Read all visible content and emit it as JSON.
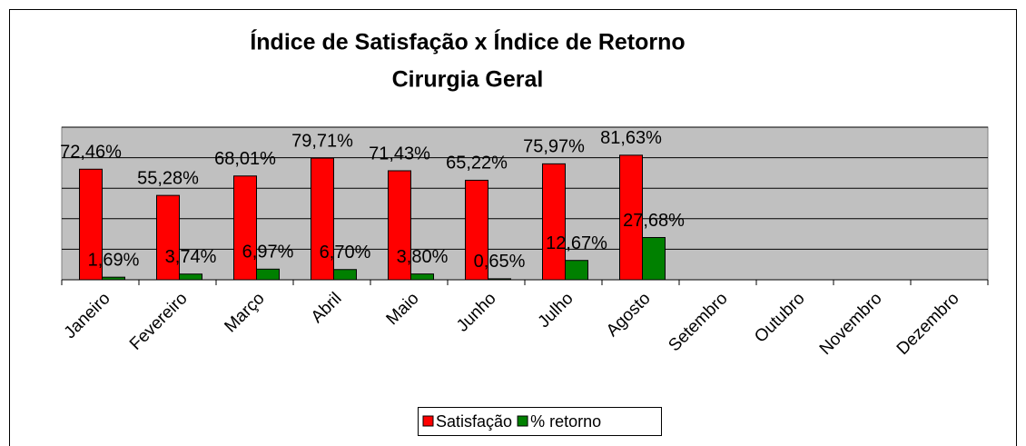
{
  "chart_data": {
    "type": "bar",
    "title": "Índice de Satisfação x Índice de Retorno",
    "subtitle": "Cirurgia Geral",
    "categories": [
      "Janeiro",
      "Fevereiro",
      "Março",
      "Abril",
      "Maio",
      "Junho",
      "Julho",
      "Agosto",
      "Setembro",
      "Outubro",
      "Novembro",
      "Dezembro"
    ],
    "series": [
      {
        "name": "Satisfação",
        "color": "#ff0000",
        "values": [
          72.46,
          55.28,
          68.01,
          79.71,
          71.43,
          65.22,
          75.97,
          81.63,
          null,
          null,
          null,
          null
        ],
        "value_labels": [
          "72,46%",
          "55,28%",
          "68,01%",
          "79,71%",
          "71,43%",
          "65,22%",
          "75,97%",
          "81,63%",
          null,
          null,
          null,
          null
        ]
      },
      {
        "name": "% retorno",
        "color": "#008000",
        "values": [
          1.69,
          3.74,
          6.97,
          6.7,
          3.8,
          0.65,
          12.67,
          27.68,
          null,
          null,
          null,
          null
        ],
        "value_labels": [
          "1,69%",
          "3,74%",
          "6,97%",
          "6,70%",
          "3,80%",
          "0,65%",
          "12,67%",
          "27,68%",
          null,
          null,
          null,
          null
        ]
      }
    ],
    "ylim": [
      0,
      100
    ],
    "gridlines": [
      20,
      40,
      60,
      80,
      100
    ],
    "plot_background": "#c0c0c0",
    "legend": "bottom"
  }
}
